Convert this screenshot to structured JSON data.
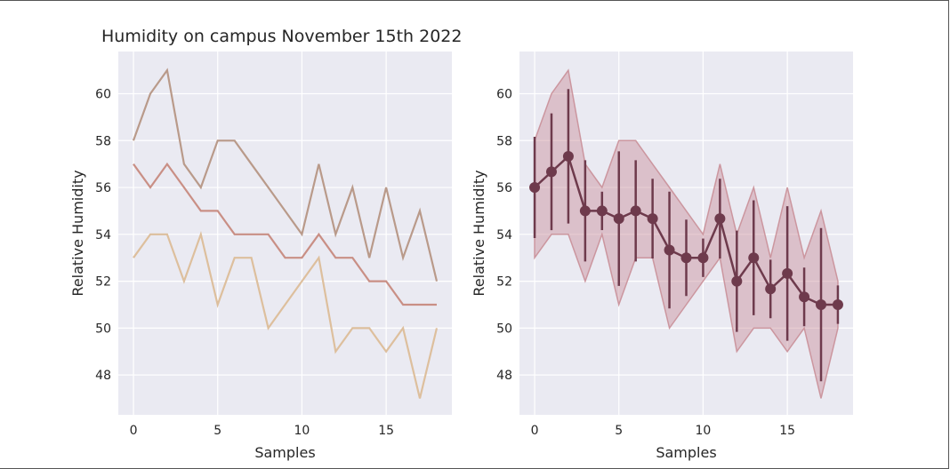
{
  "figure": {
    "title": "Humidity on campus November 15th 2022",
    "background": "#ffffff",
    "plot_background": "#eaeaf2",
    "grid_color": "#ffffff"
  },
  "chart_data": [
    {
      "type": "line",
      "title": "Humidity on campus November 15th 2022",
      "xlabel": "Samples",
      "ylabel": "Relative Humidity",
      "xlim": [
        -0.9,
        18.9
      ],
      "ylim": [
        46.3,
        61.8
      ],
      "xticks": [
        0,
        5,
        10,
        15
      ],
      "yticks": [
        48,
        50,
        52,
        54,
        56,
        58,
        60
      ],
      "grid": true,
      "x": [
        0,
        1,
        2,
        3,
        4,
        5,
        6,
        7,
        8,
        9,
        10,
        11,
        12,
        13,
        14,
        15,
        16,
        17,
        18
      ],
      "series": [
        {
          "color": "#b99a8a",
          "values": [
            58,
            60,
            61,
            57,
            56,
            58,
            58,
            57,
            56,
            55,
            54,
            57,
            54,
            56,
            53,
            56,
            53,
            55,
            52
          ]
        },
        {
          "color": "#c98f85",
          "values": [
            57,
            56,
            57,
            56,
            55,
            55,
            54,
            54,
            54,
            53,
            53,
            54,
            53,
            53,
            52,
            52,
            51,
            51,
            51
          ]
        },
        {
          "color": "#ddbf9d",
          "values": [
            53,
            54,
            54,
            52,
            54,
            51,
            53,
            53,
            50,
            51,
            52,
            53,
            49,
            50,
            50,
            49,
            50,
            47,
            50
          ]
        }
      ]
    },
    {
      "type": "line",
      "title": "",
      "xlabel": "Samples",
      "ylabel": "Relative Humidity",
      "xlim": [
        -0.9,
        18.9
      ],
      "ylim": [
        46.3,
        61.8
      ],
      "xticks": [
        0,
        5,
        10,
        15
      ],
      "yticks": [
        48,
        50,
        52,
        54,
        56,
        58,
        60
      ],
      "grid": true,
      "x": [
        0,
        1,
        2,
        3,
        4,
        5,
        6,
        7,
        8,
        9,
        10,
        11,
        12,
        13,
        14,
        15,
        16,
        17,
        18
      ],
      "mean_color": "#6e3a4c",
      "band_color": "#c98f98",
      "mean": [
        56.0,
        56.67,
        57.33,
        55.0,
        55.0,
        54.67,
        55.0,
        54.67,
        53.33,
        53.0,
        53.0,
        54.67,
        52.0,
        53.0,
        51.67,
        52.33,
        51.33,
        51.0,
        51.0
      ],
      "error": [
        2.16,
        2.49,
        2.87,
        2.16,
        0.82,
        2.87,
        2.16,
        1.7,
        2.49,
        1.63,
        0.82,
        1.7,
        2.16,
        2.45,
        1.25,
        2.87,
        1.25,
        3.27,
        0.82
      ],
      "band_min": [
        53,
        54,
        54,
        52,
        54,
        51,
        53,
        53,
        50,
        51,
        52,
        53,
        49,
        50,
        50,
        49,
        50,
        47,
        50
      ],
      "band_max": [
        58,
        60,
        61,
        57,
        56,
        58,
        58,
        57,
        56,
        55,
        54,
        57,
        54,
        56,
        53,
        56,
        53,
        55,
        52
      ]
    }
  ]
}
